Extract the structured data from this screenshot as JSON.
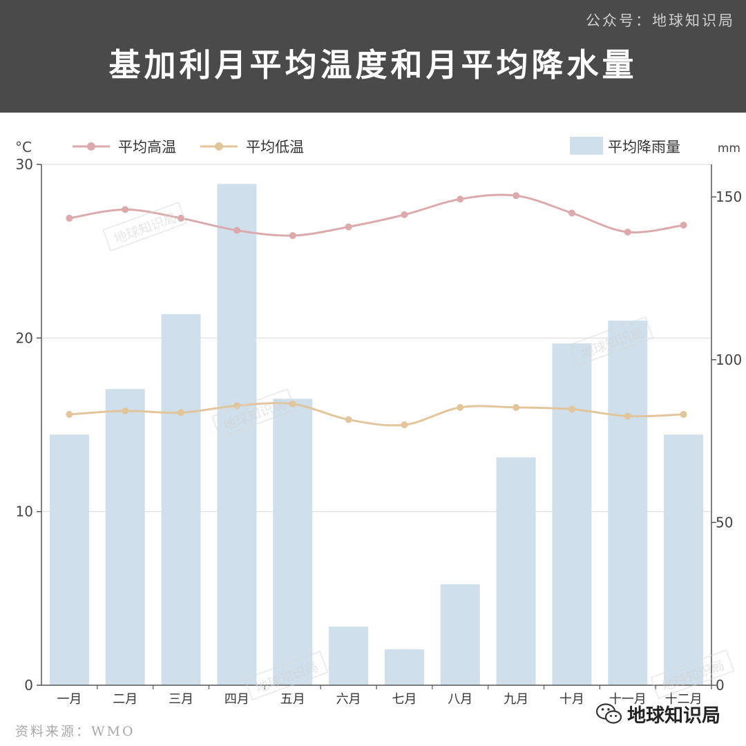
{
  "header": {
    "account": "公众号：地球知识局",
    "title": "基加利月平均温度和月平均降水量"
  },
  "footer": {
    "source": "资料来源：WMO",
    "brand": "地球知识局"
  },
  "watermark_text": "地球知识局",
  "colors": {
    "header_bg": "#4a4a4a",
    "high": "#dcaaad",
    "low": "#e3c59c",
    "rain": "#cfe0ec",
    "grid": "#dddddd",
    "axis": "#555555"
  },
  "icons": {
    "brand": "wechat-icon"
  },
  "chart_data": {
    "type": "bar+line",
    "title": "基加利月平均温度和月平均降水量",
    "categories": [
      "一月",
      "二月",
      "三月",
      "四月",
      "五月",
      "六月",
      "七月",
      "八月",
      "九月",
      "十月",
      "十一月",
      "十二月"
    ],
    "y_left": {
      "label": "°C",
      "range": [
        0,
        30
      ],
      "ticks": [
        0,
        10,
        20,
        30
      ]
    },
    "y_right": {
      "label": "mm",
      "range": [
        0,
        160
      ],
      "ticks": [
        0,
        50,
        100,
        150
      ]
    },
    "series": [
      {
        "name": "平均高温",
        "kind": "line",
        "axis": "left",
        "values": [
          26.9,
          27.4,
          26.9,
          26.2,
          25.9,
          26.4,
          27.1,
          28.0,
          28.2,
          27.2,
          26.1,
          26.5
        ]
      },
      {
        "name": "平均低温",
        "kind": "line",
        "axis": "left",
        "values": [
          15.6,
          15.8,
          15.7,
          16.1,
          16.2,
          15.3,
          15.0,
          16.0,
          16.0,
          15.9,
          15.5,
          15.6
        ]
      },
      {
        "name": "平均降雨量",
        "kind": "bar",
        "axis": "right",
        "values": [
          77,
          91,
          114,
          154,
          88,
          18,
          11,
          31,
          70,
          105,
          112,
          77
        ]
      }
    ],
    "grid": true,
    "legend": "top"
  }
}
